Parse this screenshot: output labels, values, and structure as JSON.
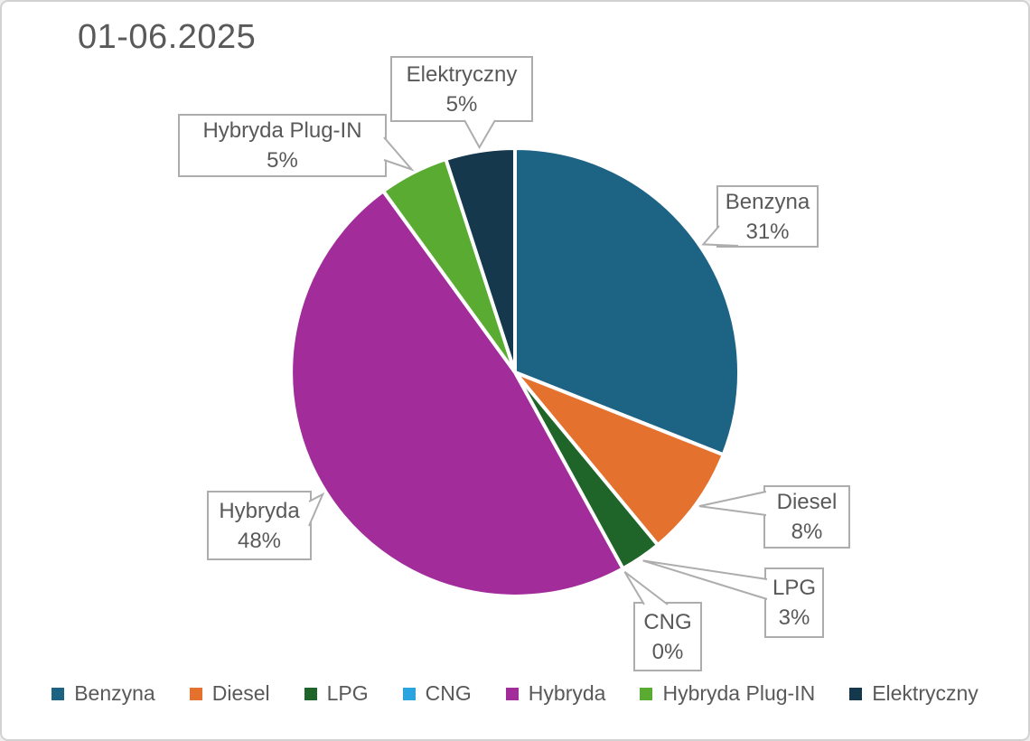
{
  "chart_data": {
    "type": "pie",
    "title": "01-06.2025",
    "categories": [
      "Benzyna",
      "Diesel",
      "LPG",
      "CNG",
      "Hybryda",
      "Hybryda Plug-IN",
      "Elektryczny"
    ],
    "values": [
      31,
      8,
      3,
      0,
      48,
      5,
      5
    ],
    "unit": "%",
    "colors": [
      "#1D6384",
      "#E4712E",
      "#1F6428",
      "#29A4DE",
      "#A12C9A",
      "#59AC31",
      "#16384C"
    ],
    "data_labels": [
      "Benzyna 31%",
      "Diesel 8%",
      "LPG 3%",
      "CNG 0%",
      "Hybryda 48%",
      "Hybryda Plug-IN 5%",
      "Elektryczny 5%"
    ],
    "start_angle_deg": 0,
    "direction": "clockwise",
    "legend_position": "bottom",
    "label_style": "callout boxes with leader pointers",
    "slice_border_color": "#FFFFFF",
    "callout_border_color": "#ADADAD",
    "text_color": "#595959"
  }
}
